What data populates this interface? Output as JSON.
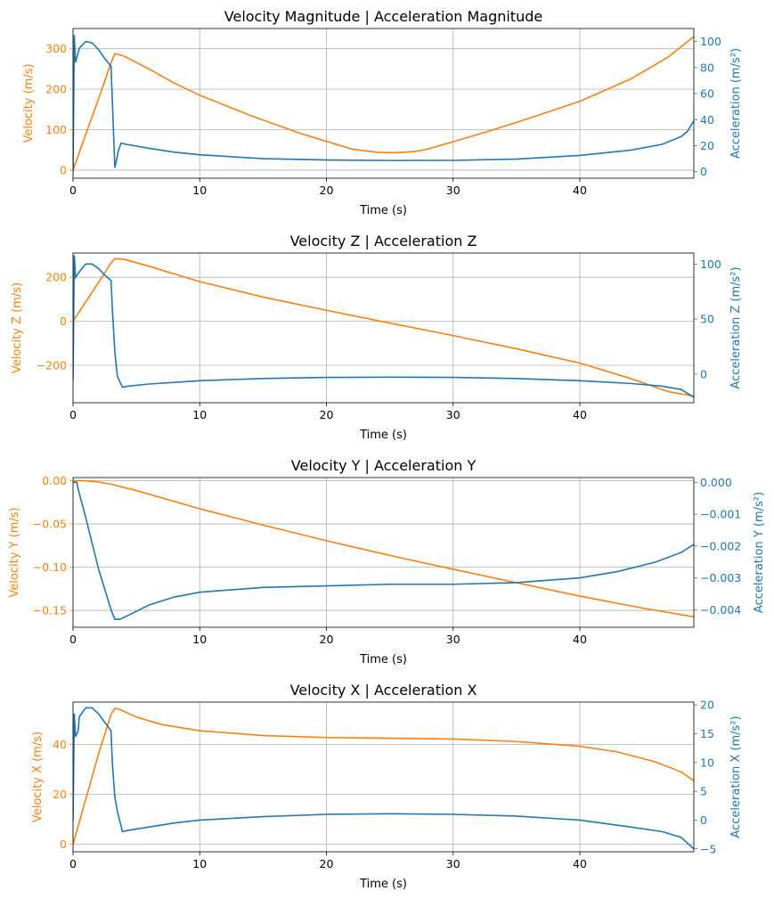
{
  "colors": {
    "velocity": "#ff7f0e",
    "acceleration": "#1f77b4",
    "grid": "#b0b0b0"
  },
  "chart_data": [
    {
      "type": "line",
      "title": "Velocity Magnitude | Acceleration Magnitude",
      "xlabel": "Time (s)",
      "ylabel": "Velocity (m/s)",
      "ylabel_right": "Acceleration (m/s²)",
      "xlim": [
        0,
        49
      ],
      "ylim": [
        -20,
        350
      ],
      "ylim_right": [
        -5,
        110
      ],
      "xticks": [
        0,
        10,
        20,
        30,
        40
      ],
      "yticks": [
        0,
        100,
        200,
        300
      ],
      "yticks_right": [
        0,
        20,
        40,
        60,
        80,
        100
      ],
      "grid": true,
      "series": [
        {
          "axis": "left",
          "color": "#ff7f0e",
          "x": [
            0,
            1,
            2,
            3,
            3.3,
            4,
            6,
            8,
            10,
            14,
            18,
            22,
            24,
            25.5,
            27,
            28,
            30,
            33,
            36,
            40,
            44,
            47,
            49
          ],
          "y": [
            0,
            88,
            175,
            265,
            288,
            282,
            250,
            215,
            185,
            135,
            90,
            52,
            44,
            43,
            46,
            52,
            70,
            98,
            128,
            170,
            225,
            280,
            330
          ]
        },
        {
          "axis": "right",
          "color": "#1f77b4",
          "x": [
            0,
            0.1,
            0.2,
            0.5,
            1,
            1.5,
            2,
            2.5,
            3,
            3.1,
            3.3,
            3.6,
            3.8,
            4.2,
            6,
            8,
            10,
            15,
            20,
            25,
            30,
            35,
            40,
            44,
            46.5,
            48,
            48.5,
            49
          ],
          "y": [
            0,
            105,
            84,
            95,
            100,
            99,
            94,
            87,
            81,
            55,
            3,
            17,
            22,
            21,
            18,
            15,
            13,
            10,
            9,
            8.6,
            8.7,
            9.7,
            12.5,
            16.5,
            21,
            27,
            31,
            39
          ]
        }
      ]
    },
    {
      "type": "line",
      "title": "Velocity Z | Acceleration Z",
      "xlabel": "Time (s)",
      "ylabel": "Velocity Z (m/s)",
      "ylabel_right": "Acceleration Z (m/s²)",
      "xlim": [
        0,
        49
      ],
      "ylim": [
        -370,
        310
      ],
      "ylim_right": [
        -26,
        110
      ],
      "xticks": [
        0,
        10,
        20,
        30,
        40
      ],
      "yticks": [
        -200,
        0,
        200
      ],
      "yticks_right": [
        0,
        50,
        100
      ],
      "grid": true,
      "series": [
        {
          "axis": "left",
          "color": "#ff7f0e",
          "x": [
            0,
            1,
            2,
            3,
            3.3,
            4,
            6,
            8,
            10,
            15,
            20,
            25,
            30,
            35,
            40,
            44,
            47,
            49
          ],
          "y": [
            0,
            88,
            175,
            265,
            285,
            282,
            250,
            215,
            180,
            110,
            50,
            -8,
            -65,
            -125,
            -190,
            -260,
            -320,
            -340
          ]
        },
        {
          "axis": "right",
          "color": "#1f77b4",
          "x": [
            0,
            0.1,
            0.2,
            0.5,
            1,
            1.5,
            2,
            2.5,
            3,
            3.1,
            3.3,
            3.5,
            3.9,
            4.3,
            6,
            8,
            10,
            15,
            20,
            25,
            30,
            35,
            40,
            44,
            46.5,
            48,
            49
          ],
          "y": [
            -5,
            108,
            88,
            93,
            100,
            100,
            96,
            90,
            85,
            60,
            20,
            -2,
            -12,
            -11,
            -9,
            -7.5,
            -6,
            -4,
            -3,
            -2.8,
            -3,
            -4,
            -6,
            -8.5,
            -11,
            -14,
            -21
          ]
        }
      ]
    },
    {
      "type": "line",
      "title": "Velocity Y | Acceleration Y",
      "xlabel": "Time (s)",
      "ylabel": "Velocity Y (m/s)",
      "ylabel_right": "Acceleration Y (m/s²)",
      "xlim": [
        0,
        49
      ],
      "ylim": [
        -0.1695,
        0.0035
      ],
      "ylim_right": [
        -0.00455,
        0.00015
      ],
      "xticks": [
        0,
        10,
        20,
        30,
        40
      ],
      "yticks": [
        0.0,
        -0.05,
        -0.1,
        -0.15
      ],
      "yticks_right": [
        0.0,
        -0.001,
        -0.002,
        -0.003,
        -0.004
      ],
      "grid": true,
      "series": [
        {
          "axis": "left",
          "color": "#ff7f0e",
          "x": [
            0,
            1,
            2,
            3,
            5,
            10,
            15,
            20,
            25,
            30,
            35,
            40,
            45,
            49
          ],
          "y": [
            0,
            -0.0003,
            -0.0015,
            -0.0042,
            -0.0115,
            -0.0325,
            -0.0515,
            -0.0695,
            -0.0865,
            -0.1025,
            -0.118,
            -0.1335,
            -0.1475,
            -0.1575
          ]
        },
        {
          "axis": "right",
          "color": "#1f77b4",
          "x": [
            0,
            0.3,
            0.4,
            1,
            2,
            3,
            3.3,
            3.7,
            4.5,
            6,
            8,
            10,
            15,
            20,
            25,
            30,
            35,
            40,
            43,
            46,
            48,
            49
          ],
          "y": [
            0,
            0,
            -0.0002,
            -0.0011,
            -0.0027,
            -0.004,
            -0.0043,
            -0.0043,
            -0.00415,
            -0.00385,
            -0.0036,
            -0.00345,
            -0.0033,
            -0.00325,
            -0.0032,
            -0.0032,
            -0.00315,
            -0.003,
            -0.0028,
            -0.0025,
            -0.0022,
            -0.00195
          ]
        }
      ]
    },
    {
      "type": "line",
      "title": "Velocity X | Acceleration X",
      "xlabel": "Time (s)",
      "ylabel": "Velocity X (m/s)",
      "ylabel_right": "Acceleration X (m/s²)",
      "xlim": [
        0,
        49
      ],
      "ylim": [
        -3,
        57
      ],
      "ylim_right": [
        -5.5,
        20.5
      ],
      "xticks": [
        0,
        10,
        20,
        30,
        40
      ],
      "yticks": [
        0,
        20,
        40
      ],
      "yticks_right": [
        -5,
        0,
        5,
        10,
        15,
        20
      ],
      "grid": true,
      "series": [
        {
          "axis": "left",
          "color": "#ff7f0e",
          "x": [
            0,
            1,
            2,
            3,
            3.3,
            3.7,
            5,
            7,
            10,
            15,
            20,
            25,
            30,
            35,
            40,
            43,
            46,
            48,
            49
          ],
          "y": [
            0,
            18,
            36,
            52,
            54.5,
            54,
            51,
            48,
            45.5,
            43.6,
            42.8,
            42.5,
            42.2,
            41.2,
            39.3,
            37,
            33,
            29,
            25.5
          ]
        },
        {
          "axis": "right",
          "color": "#1f77b4",
          "x": [
            0,
            0.1,
            0.2,
            0.4,
            0.5,
            1,
            1.5,
            2,
            2.5,
            3,
            3.1,
            3.3,
            3.5,
            3.9,
            4.3,
            6,
            8,
            10,
            15,
            20,
            25,
            30,
            35,
            40,
            44,
            46.5,
            48,
            49
          ],
          "y": [
            0,
            18.5,
            14.5,
            15.5,
            18,
            19.5,
            19.5,
            18.5,
            17,
            15.5,
            10,
            4,
            1.5,
            -2,
            -1.8,
            -1.2,
            -0.5,
            0,
            0.6,
            1,
            1.1,
            1,
            0.7,
            0,
            -1.2,
            -2,
            -3,
            -5
          ]
        }
      ]
    }
  ]
}
